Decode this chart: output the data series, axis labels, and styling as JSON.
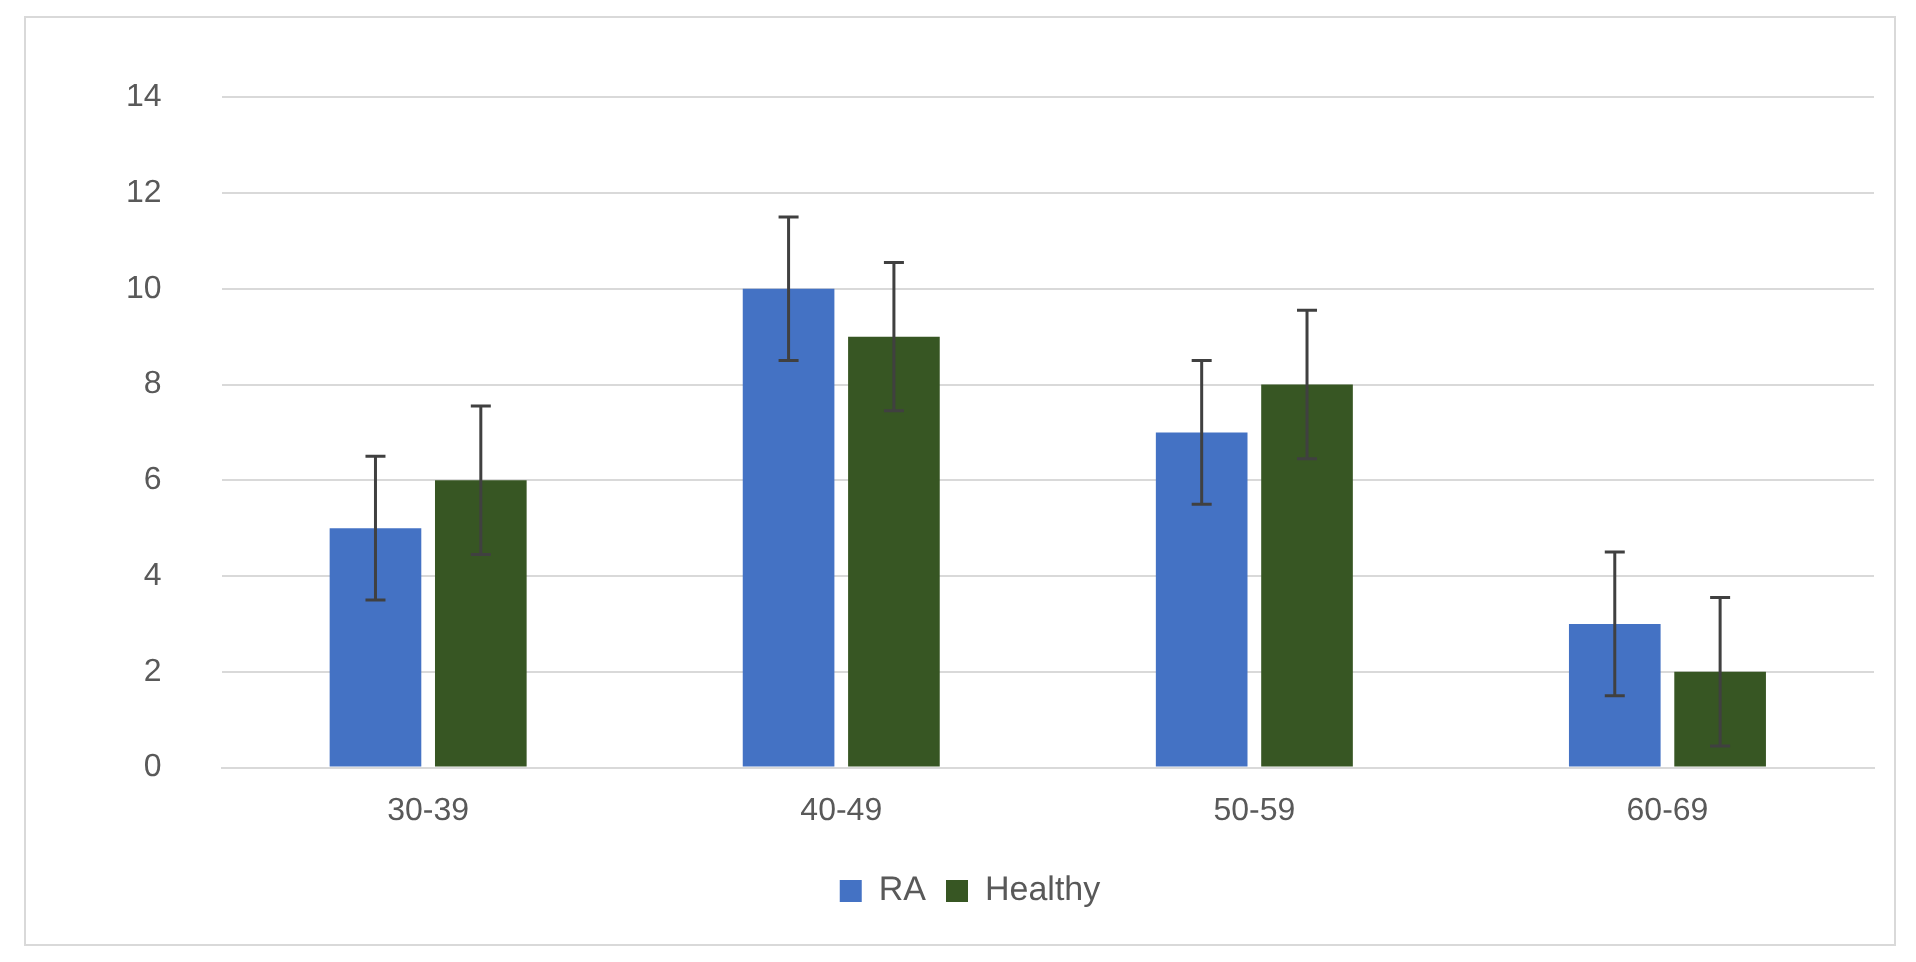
{
  "chart_data": {
    "type": "bar",
    "categories": [
      "30-39",
      "40-49",
      "50-59",
      "60-69"
    ],
    "series": [
      {
        "name": "RA",
        "color": "#4472c4",
        "values": [
          5,
          10,
          7,
          3
        ],
        "errors": [
          1.5,
          1.5,
          1.5,
          1.5
        ]
      },
      {
        "name": "Healthy",
        "color": "#375623",
        "values": [
          6,
          9,
          8,
          2
        ],
        "errors": [
          1.55,
          1.55,
          1.55,
          1.55
        ]
      }
    ],
    "ylim": [
      0,
      14
    ],
    "yticks": [
      0,
      2,
      4,
      6,
      8,
      10,
      12,
      14
    ],
    "grid": "y",
    "legend": "bottom"
  }
}
